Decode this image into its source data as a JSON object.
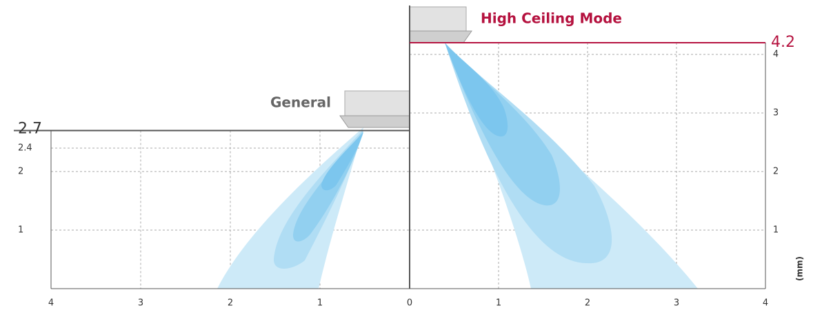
{
  "chart_data": {
    "type": "airflow",
    "unit_label": "(mm)",
    "ylim": [
      0,
      4.2
    ],
    "general": {
      "label": "General",
      "height": 2.7,
      "xlim": [
        4,
        0
      ],
      "xticks": [
        4,
        3,
        2,
        1,
        0
      ],
      "yticks": [
        1,
        2,
        2.4
      ]
    },
    "high": {
      "label": "High Ceiling Mode",
      "height": 4.2,
      "xlim": [
        0,
        4
      ],
      "xticks": [
        1,
        2,
        3,
        4
      ],
      "yticks": [
        1,
        2,
        3,
        4
      ]
    }
  }
}
